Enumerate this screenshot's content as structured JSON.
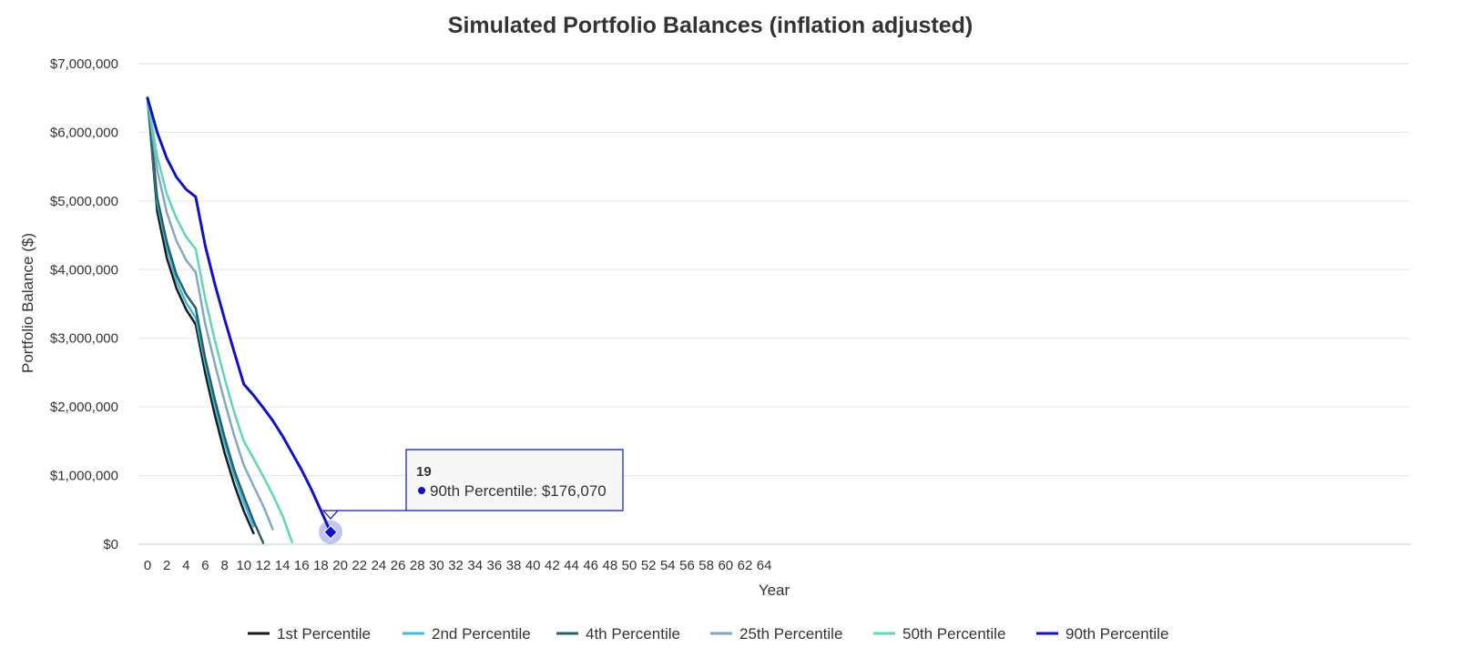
{
  "chart_data": {
    "type": "line",
    "title": "Simulated Portfolio Balances (inflation adjusted)",
    "xlabel": "Year",
    "ylabel": "Portfolio Balance ($)",
    "xlim": [
      0,
      65
    ],
    "ylim": [
      0,
      7000000
    ],
    "x_ticks": [
      "0",
      "2",
      "4",
      "6",
      "8",
      "10",
      "12",
      "14",
      "16",
      "18",
      "20",
      "22",
      "24",
      "26",
      "28",
      "30",
      "32",
      "34",
      "36",
      "38",
      "40",
      "42",
      "44",
      "46",
      "48",
      "50",
      "52",
      "54",
      "56",
      "58",
      "60",
      "62",
      "64"
    ],
    "y_ticks": [
      "$0",
      "$1,000,000",
      "$2,000,000",
      "$3,000,000",
      "$4,000,000",
      "$5,000,000",
      "$6,000,000",
      "$7,000,000"
    ],
    "grid": "horizontal",
    "legend": "bottom",
    "series": [
      {
        "name": "1st Percentile",
        "color": "#1a1a1a",
        "x": [
          0,
          1,
          2,
          3,
          4,
          5,
          6,
          7,
          8,
          9,
          10,
          11
        ],
        "values": [
          6500000,
          4850000,
          4170000,
          3730000,
          3420000,
          3200000,
          2480000,
          1870000,
          1330000,
          870000,
          480000,
          160000
        ]
      },
      {
        "name": "2nd Percentile",
        "color": "#3cbcd8",
        "x": [
          0,
          1,
          2,
          3,
          4,
          5,
          6,
          7,
          8,
          9,
          10,
          11
        ],
        "values": [
          6500000,
          4980000,
          4320000,
          3840000,
          3520000,
          3300000,
          2620000,
          2000000,
          1470000,
          1000000,
          600000,
          260000
        ]
      },
      {
        "name": "4th Percentile",
        "color": "#24606e",
        "x": [
          0,
          1,
          2,
          3,
          4,
          5,
          6,
          7,
          8,
          9,
          10,
          11,
          12
        ],
        "values": [
          6500000,
          5050000,
          4400000,
          3930000,
          3640000,
          3440000,
          2700000,
          2100000,
          1560000,
          1080000,
          700000,
          340000,
          20000
        ]
      },
      {
        "name": "25th Percentile",
        "color": "#84a8c4",
        "x": [
          0,
          1,
          2,
          3,
          4,
          5,
          6,
          7,
          8,
          9,
          10,
          11,
          12,
          13
        ],
        "values": [
          6500000,
          5450000,
          4830000,
          4420000,
          4140000,
          3960000,
          3200000,
          2620000,
          2080000,
          1580000,
          1150000,
          850000,
          560000,
          220000
        ]
      },
      {
        "name": "50th Percentile",
        "color": "#5bd8b0",
        "x": [
          0,
          1,
          2,
          3,
          4,
          5,
          6,
          7,
          8,
          9,
          10,
          11,
          12,
          13,
          14,
          15
        ],
        "values": [
          6500000,
          5650000,
          5100000,
          4750000,
          4480000,
          4300000,
          3570000,
          2960000,
          2420000,
          1920000,
          1500000,
          1250000,
          990000,
          720000,
          420000,
          30000
        ]
      },
      {
        "name": "90th Percentile",
        "color": "#1010cc",
        "x": [
          0,
          1,
          2,
          3,
          4,
          5,
          6,
          7,
          8,
          9,
          10,
          11,
          12,
          13,
          14,
          15,
          16,
          17,
          18,
          19
        ],
        "values": [
          6500000,
          6000000,
          5620000,
          5350000,
          5170000,
          5060000,
          4340000,
          3780000,
          3280000,
          2800000,
          2330000,
          2170000,
          1990000,
          1800000,
          1580000,
          1330000,
          1080000,
          800000,
          490000,
          176070
        ]
      }
    ],
    "tooltip": {
      "title": "19",
      "series": "90th Percentile",
      "text": "90th Percentile: $176,070",
      "x": 19,
      "value": 176070
    }
  }
}
